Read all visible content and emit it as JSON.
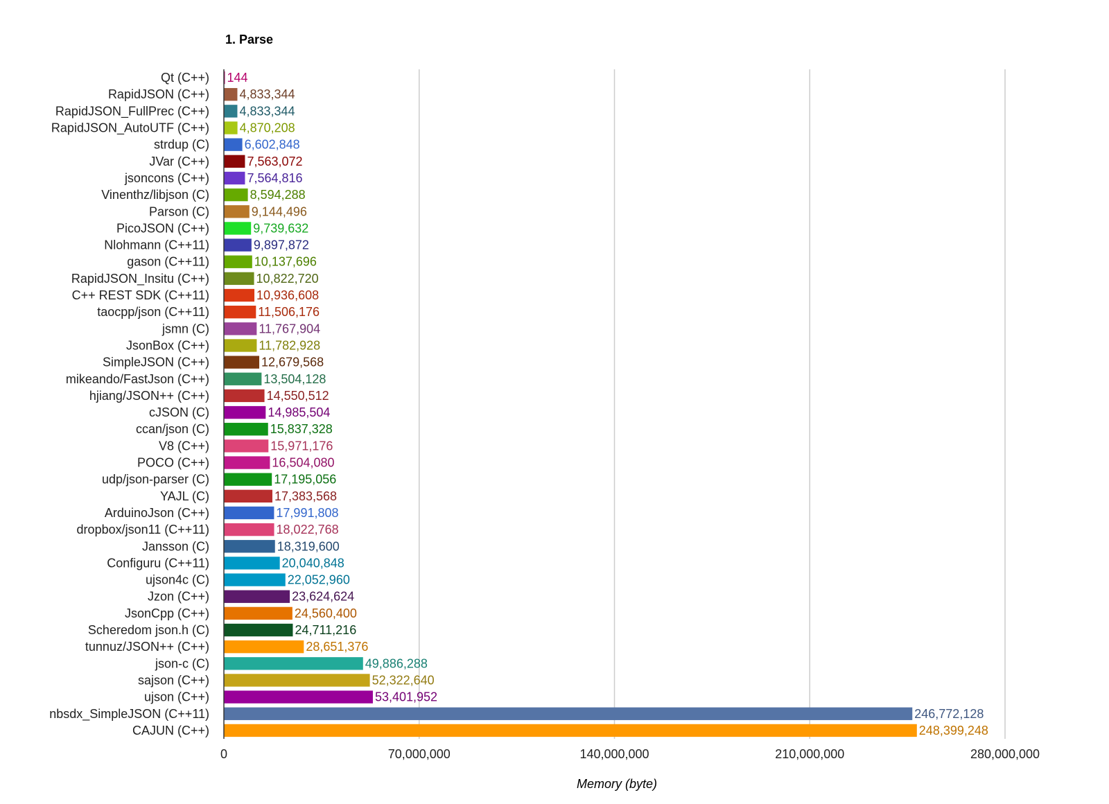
{
  "chart_data": {
    "type": "bar",
    "orientation": "horizontal",
    "title": "1. Parse",
    "xlabel": "Memory (byte)",
    "ylabel": "",
    "xlim": [
      0,
      280000000
    ],
    "x_ticks": [
      "0",
      "70,000,000",
      "140,000,000",
      "210,000,000",
      "280,000,000"
    ],
    "x_tick_values": [
      0,
      70000000,
      140000000,
      210000000,
      280000000
    ],
    "grid": true,
    "legend": "none",
    "categories": [
      "Qt (C++)",
      "RapidJSON (C++)",
      "RapidJSON_FullPrec (C++)",
      "RapidJSON_AutoUTF (C++)",
      "strdup (C)",
      "JVar (C++)",
      "jsoncons (C++)",
      "Vinenthz/libjson (C)",
      "Parson (C)",
      "PicoJSON (C++)",
      "Nlohmann (C++11)",
      "gason (C++11)",
      "RapidJSON_Insitu (C++)",
      "C++ REST SDK (C++11)",
      "taocpp/json (C++11)",
      "jsmn (C)",
      "JsonBox (C++)",
      "SimpleJSON (C++)",
      "mikeando/FastJson (C++)",
      "hjiang/JSON++ (C++)",
      "cJSON (C)",
      "ccan/json (C)",
      "V8 (C++)",
      "POCO (C++)",
      "udp/json-parser (C)",
      "YAJL (C)",
      "ArduinoJson (C++)",
      "dropbox/json11 (C++11)",
      "Jansson (C)",
      "Configuru (C++11)",
      "ujson4c (C)",
      "Jzon (C++)",
      "JsonCpp (C++)",
      "Scheredom json.h (C)",
      "tunnuz/JSON++ (C++)",
      "json-c (C)",
      "sajson (C++)",
      "ujson (C++)",
      "nbsdx_SimpleJSON (C++11)",
      "CAJUN (C++)"
    ],
    "values": [
      144,
      4833344,
      4833344,
      4870208,
      6602848,
      7563072,
      7564816,
      8594288,
      9144496,
      9739632,
      9897872,
      10137696,
      10822720,
      10936608,
      11506176,
      11767904,
      11782928,
      12679568,
      13504128,
      14550512,
      14985504,
      15837328,
      15971176,
      16504080,
      17195056,
      17383568,
      17991808,
      18022768,
      18319600,
      20040848,
      22052960,
      23624624,
      24560400,
      24711216,
      28651376,
      49886288,
      52322640,
      53401952,
      246772128,
      248399248
    ],
    "value_labels": [
      "144",
      "4,833,344",
      "4,833,344",
      "4,870,208",
      "6,602,848",
      "7,563,072",
      "7,564,816",
      "8,594,288",
      "9,144,496",
      "9,739,632",
      "9,897,872",
      "10,137,696",
      "10,822,720",
      "10,936,608",
      "11,506,176",
      "11,767,904",
      "11,782,928",
      "12,679,568",
      "13,504,128",
      "14,550,512",
      "14,985,504",
      "15,837,328",
      "15,971,176",
      "16,504,080",
      "17,195,056",
      "17,383,568",
      "17,991,808",
      "18,022,768",
      "18,319,600",
      "20,040,848",
      "22,052,960",
      "23,624,624",
      "24,560,400",
      "24,711,216",
      "28,651,376",
      "49,886,288",
      "52,322,640",
      "53,401,952",
      "246,772,128",
      "248,399,248"
    ],
    "colors": [
      "#b5006a",
      "#9c5a3c",
      "#2e7d8c",
      "#a8c813",
      "#3366cc",
      "#8b0707",
      "#6b36cc",
      "#66aa00",
      "#b8782a",
      "#1ee02a",
      "#3b3eac",
      "#66aa00",
      "#6e8b1c",
      "#dc3912",
      "#dc3912",
      "#994499",
      "#aaaa11",
      "#7a3810",
      "#329262",
      "#b82e2e",
      "#990099",
      "#109618",
      "#dd4477",
      "#c2188b",
      "#109618",
      "#b82e2e",
      "#3366cc",
      "#dd4477",
      "#316395",
      "#0099c6",
      "#0099c6",
      "#5c1a6b",
      "#e67300",
      "#0e5524",
      "#ff9900",
      "#22aa99",
      "#c4a418",
      "#990099",
      "#5574a6",
      "#ff9900"
    ],
    "label_colors": [
      "#b5006a",
      "#6e3f28",
      "#1f5a66",
      "#7f9a00",
      "#3366cc",
      "#8b0707",
      "#4a2599",
      "#4d8000",
      "#8a5a1e",
      "#17a822",
      "#2b2e80",
      "#4d8000",
      "#4f6614",
      "#a82b0d",
      "#a82b0d",
      "#733373",
      "#80800d",
      "#5c2a0c",
      "#256e4a",
      "#8a2222",
      "#730073",
      "#0c7012",
      "#a63359",
      "#921266",
      "#0c7012",
      "#8a2222",
      "#3366cc",
      "#a63359",
      "#25496e",
      "#007394",
      "#007394",
      "#451450",
      "#ad5700",
      "#0a3f1b",
      "#bf7300",
      "#198073",
      "#937b12",
      "#730073",
      "#3f5780",
      "#bf7300"
    ]
  }
}
